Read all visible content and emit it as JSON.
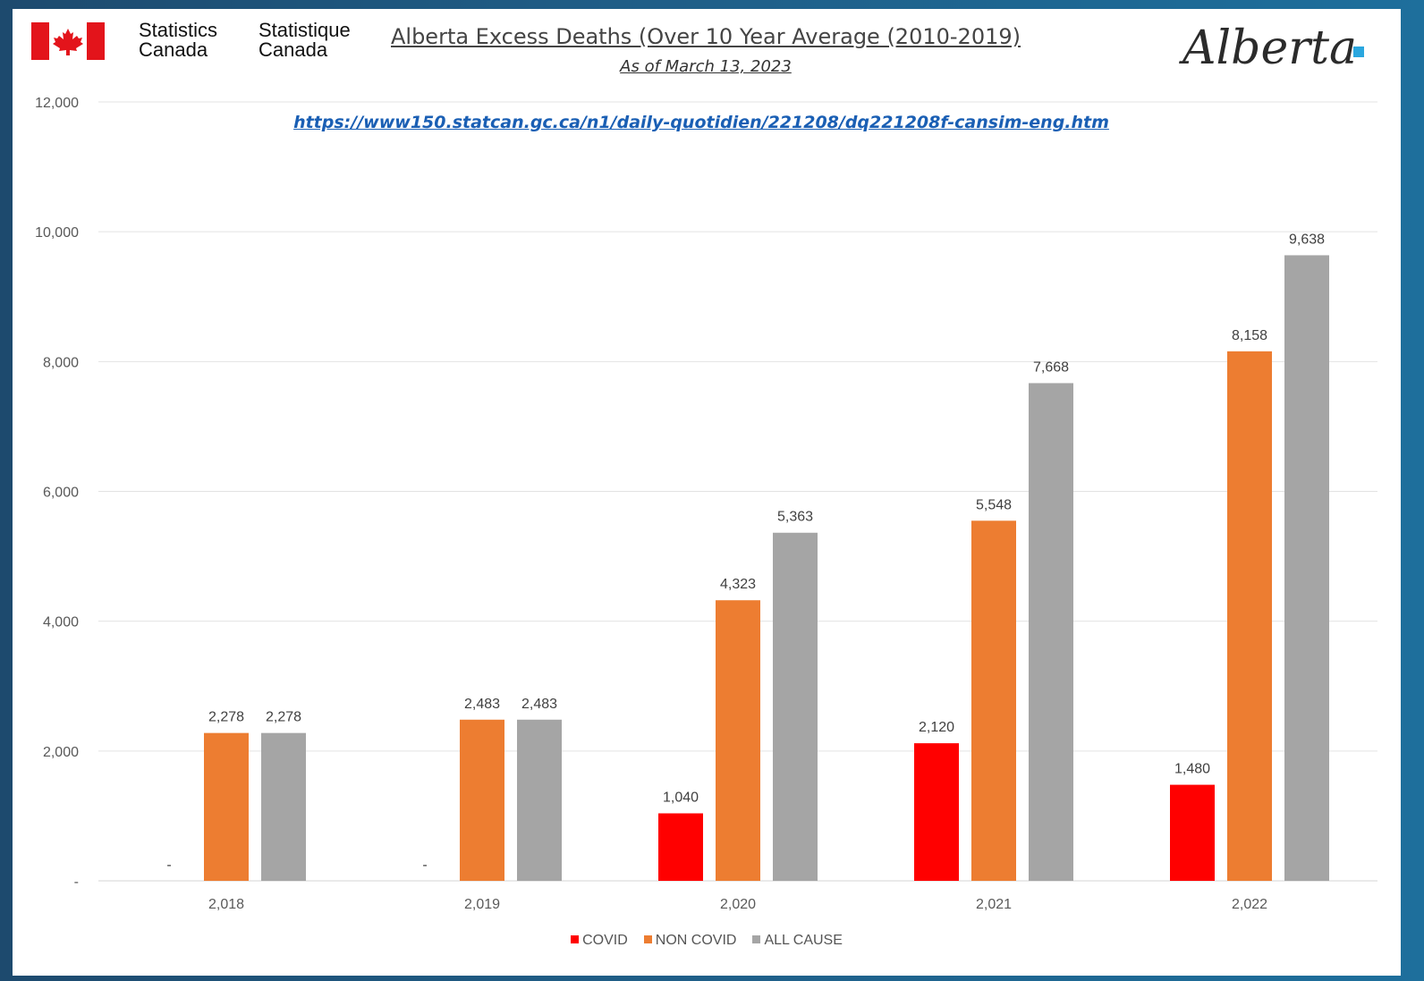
{
  "header": {
    "agency_en": [
      "Statistics",
      "Canada"
    ],
    "agency_fr": [
      "Statistique",
      "Canada"
    ],
    "title": "Alberta Excess Deaths (Over 10 Year Average (2010-2019)",
    "subtitle": "As of March 13, 2023",
    "source_url": "https://www150.statcan.gc.ca/n1/daily-quotidien/221208/dq221208f-cansim-eng.htm",
    "province_logo_text": "Alberta"
  },
  "colors": {
    "covid": "#ff0000",
    "non_covid": "#ed7d31",
    "all_cause": "#a5a5a5",
    "grid": "#e3e3e3",
    "label": "#404040",
    "axis_text": "#595959"
  },
  "chart_data": {
    "type": "bar",
    "categories": [
      "2,018",
      "2,019",
      "2,020",
      "2,021",
      "2,022"
    ],
    "series": [
      {
        "name": "COVID",
        "values": [
          0,
          0,
          1040,
          2120,
          1480
        ],
        "labels": [
          "-",
          "-",
          "1,040",
          "2,120",
          "1,480"
        ]
      },
      {
        "name": "NON COVID",
        "values": [
          2278,
          2483,
          4323,
          5548,
          8158
        ],
        "labels": [
          "2,278",
          "2,483",
          "4,323",
          "5,548",
          "8,158"
        ]
      },
      {
        "name": "ALL CAUSE",
        "values": [
          2278,
          2483,
          5363,
          7668,
          9638
        ],
        "labels": [
          "2,278",
          "2,483",
          "5,363",
          "7,668",
          "9,638"
        ]
      }
    ],
    "yticks": [
      0,
      2000,
      4000,
      6000,
      8000,
      10000,
      12000
    ],
    "ytick_labels": [
      "-",
      "2,000",
      "4,000",
      "6,000",
      "8,000",
      "10,000",
      "12,000"
    ],
    "ylim": [
      0,
      12000
    ],
    "grid": true,
    "legend_position": "bottom"
  }
}
